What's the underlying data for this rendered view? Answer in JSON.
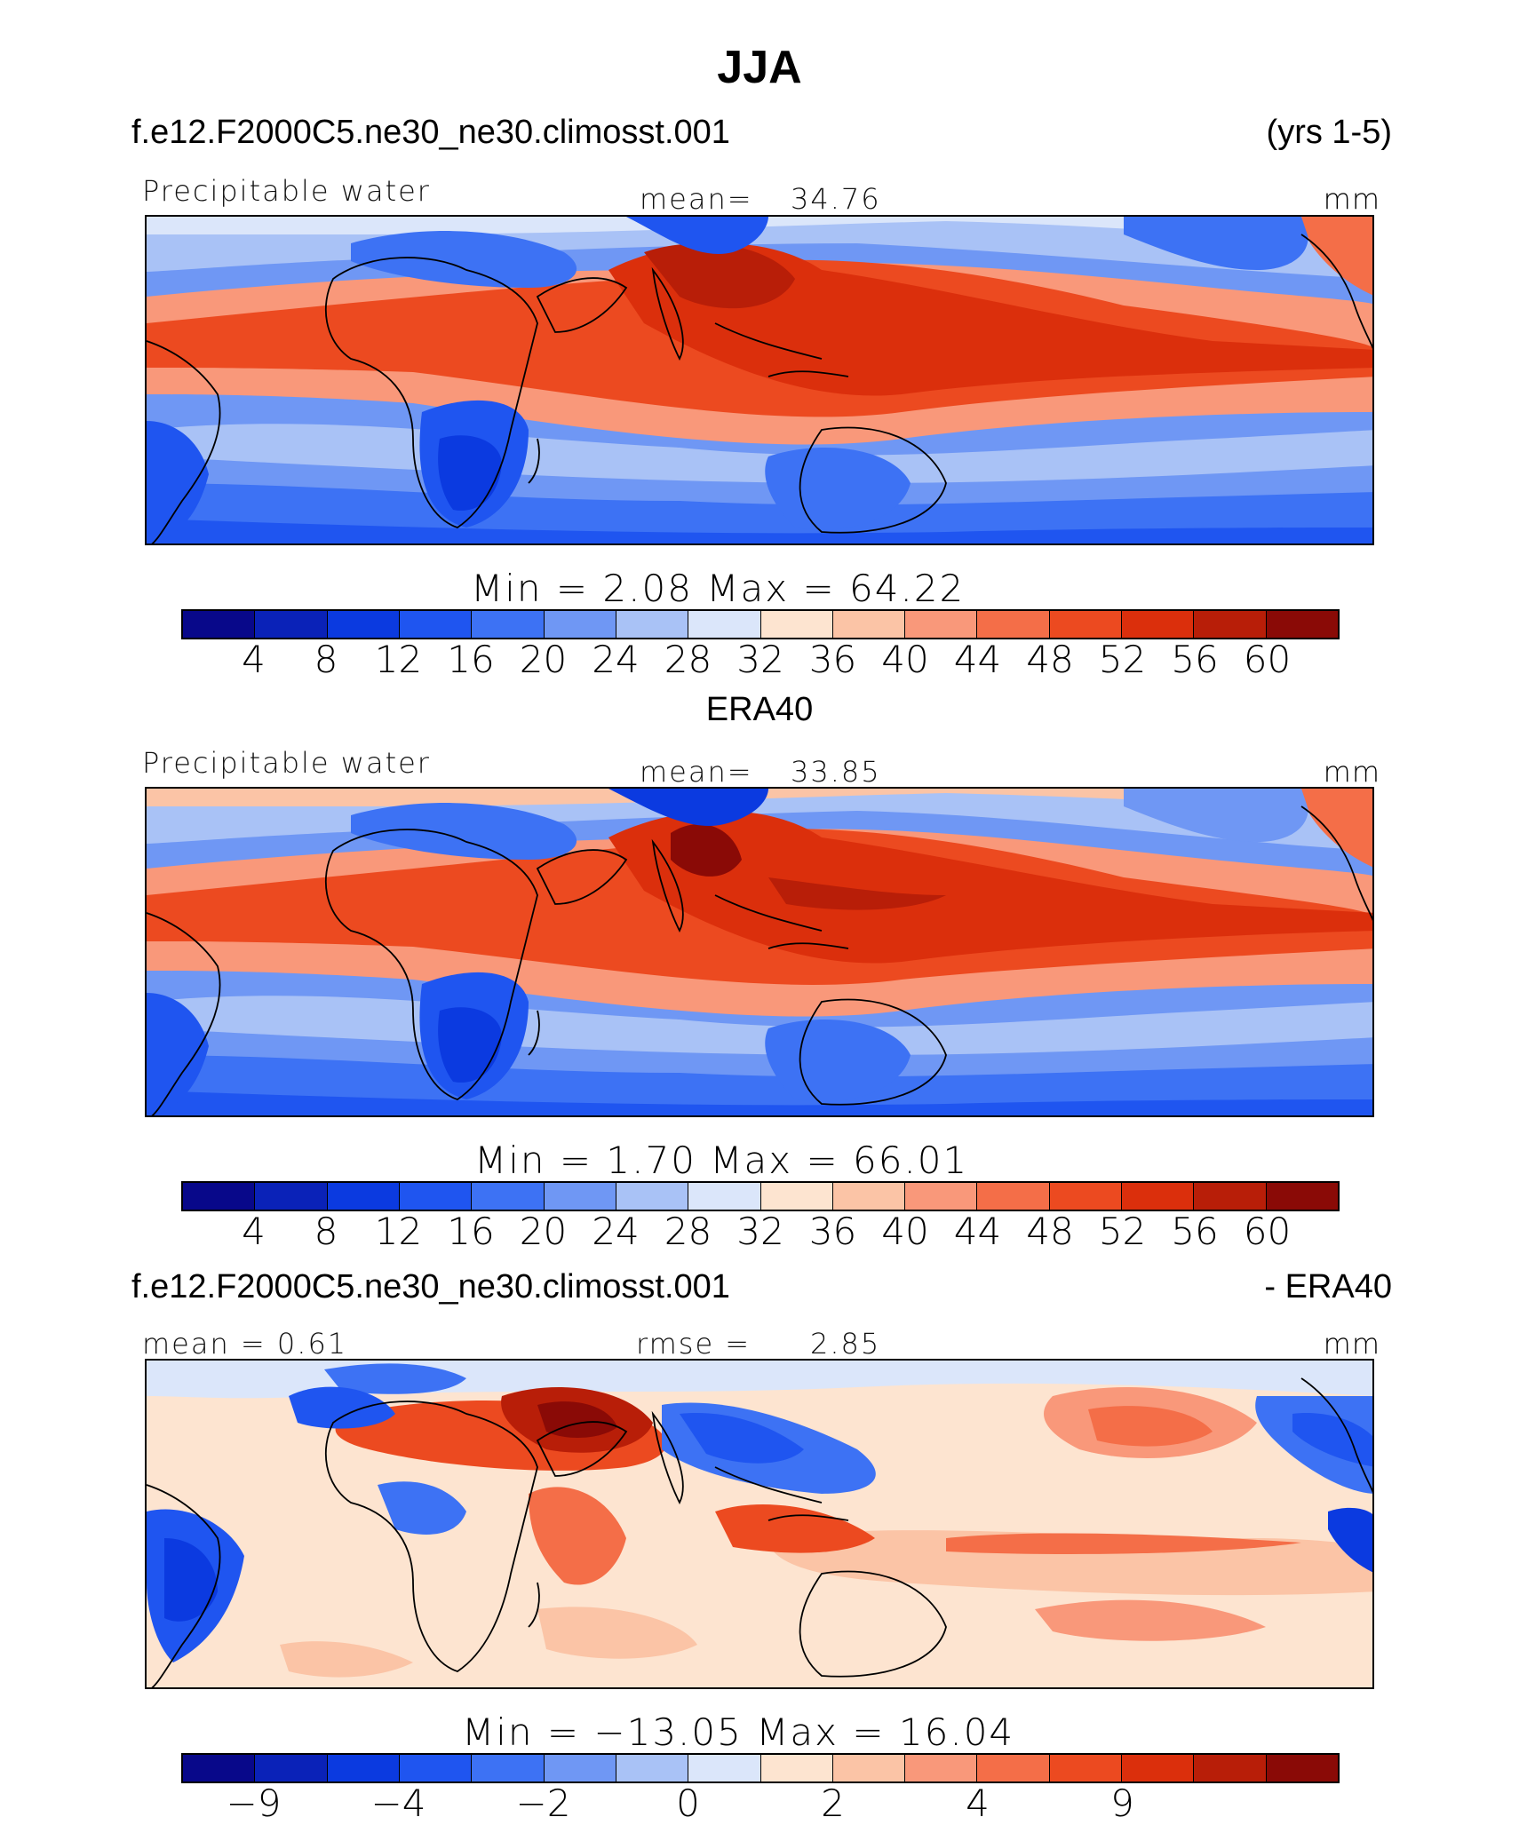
{
  "title": "JJA",
  "palette": [
    "#08088a",
    "#0a22b8",
    "#0b3ae0",
    "#1f55f0",
    "#3d72f4",
    "#6f97f4",
    "#a9c2f6",
    "#dbe6fa",
    "#fde4d0",
    "#fbc4a6",
    "#f9987a",
    "#f46e48",
    "#ec4a20",
    "#db2f0c",
    "#b81e08",
    "#8a0a06"
  ],
  "panels": [
    {
      "case_label": "f.e12.F2000C5.ne30_ne30.climosst.001",
      "case_right": "(yrs 1-5)",
      "center_label": "",
      "left_label": "Precipitable water",
      "mean_label": "mean=",
      "mean_value": "34.76",
      "units": "mm",
      "min_text": "Min  =     2.08  Max  =   64.22",
      "ticks": [
        "4",
        "8",
        "12",
        "16",
        "20",
        "24",
        "28",
        "32",
        "36",
        "40",
        "44",
        "48",
        "52",
        "56",
        "60"
      ]
    },
    {
      "case_label": "",
      "case_right": "",
      "center_label": "ERA40",
      "left_label": "Precipitable water",
      "mean_label": "mean=",
      "mean_value": "33.85",
      "units": "mm",
      "min_text": "Min  =     1.70  Max  =   66.01",
      "ticks": [
        "4",
        "8",
        "12",
        "16",
        "20",
        "24",
        "28",
        "32",
        "36",
        "40",
        "44",
        "48",
        "52",
        "56",
        "60"
      ]
    },
    {
      "case_label": "f.e12.F2000C5.ne30_ne30.climosst.001",
      "case_right": "- ERA40",
      "center_label": "",
      "left_label": "mean  =    0.61",
      "mean_label": "rmse  =",
      "mean_value": "2.85",
      "units": "mm",
      "min_text": "Min  =  −13.05  Max  =   16.04",
      "ticks": [
        "−9",
        "−4",
        "−2",
        "0",
        "2",
        "4",
        "9"
      ]
    }
  ],
  "chart_data": [
    {
      "type": "heatmap",
      "title": "JJA",
      "subtitle": "f.e12.F2000C5.ne30_ne30.climosst.001 (yrs 1-5)",
      "field": "Precipitable water",
      "units": "mm",
      "mean": 34.76,
      "min": 2.08,
      "max": 64.22,
      "contour_levels": [
        4,
        8,
        12,
        16,
        20,
        24,
        28,
        32,
        36,
        40,
        44,
        48,
        52,
        56,
        60
      ]
    },
    {
      "type": "heatmap",
      "subtitle": "ERA40",
      "field": "Precipitable water",
      "units": "mm",
      "mean": 33.85,
      "min": 1.7,
      "max": 66.01,
      "contour_levels": [
        4,
        8,
        12,
        16,
        20,
        24,
        28,
        32,
        36,
        40,
        44,
        48,
        52,
        56,
        60
      ]
    },
    {
      "type": "heatmap",
      "subtitle": "f.e12.F2000C5.ne30_ne30.climosst.001 - ERA40",
      "units": "mm",
      "mean": 0.61,
      "rmse": 2.85,
      "min": -13.05,
      "max": 16.04,
      "contour_levels": [
        -9,
        -4,
        -2,
        0,
        2,
        4,
        9
      ]
    }
  ]
}
